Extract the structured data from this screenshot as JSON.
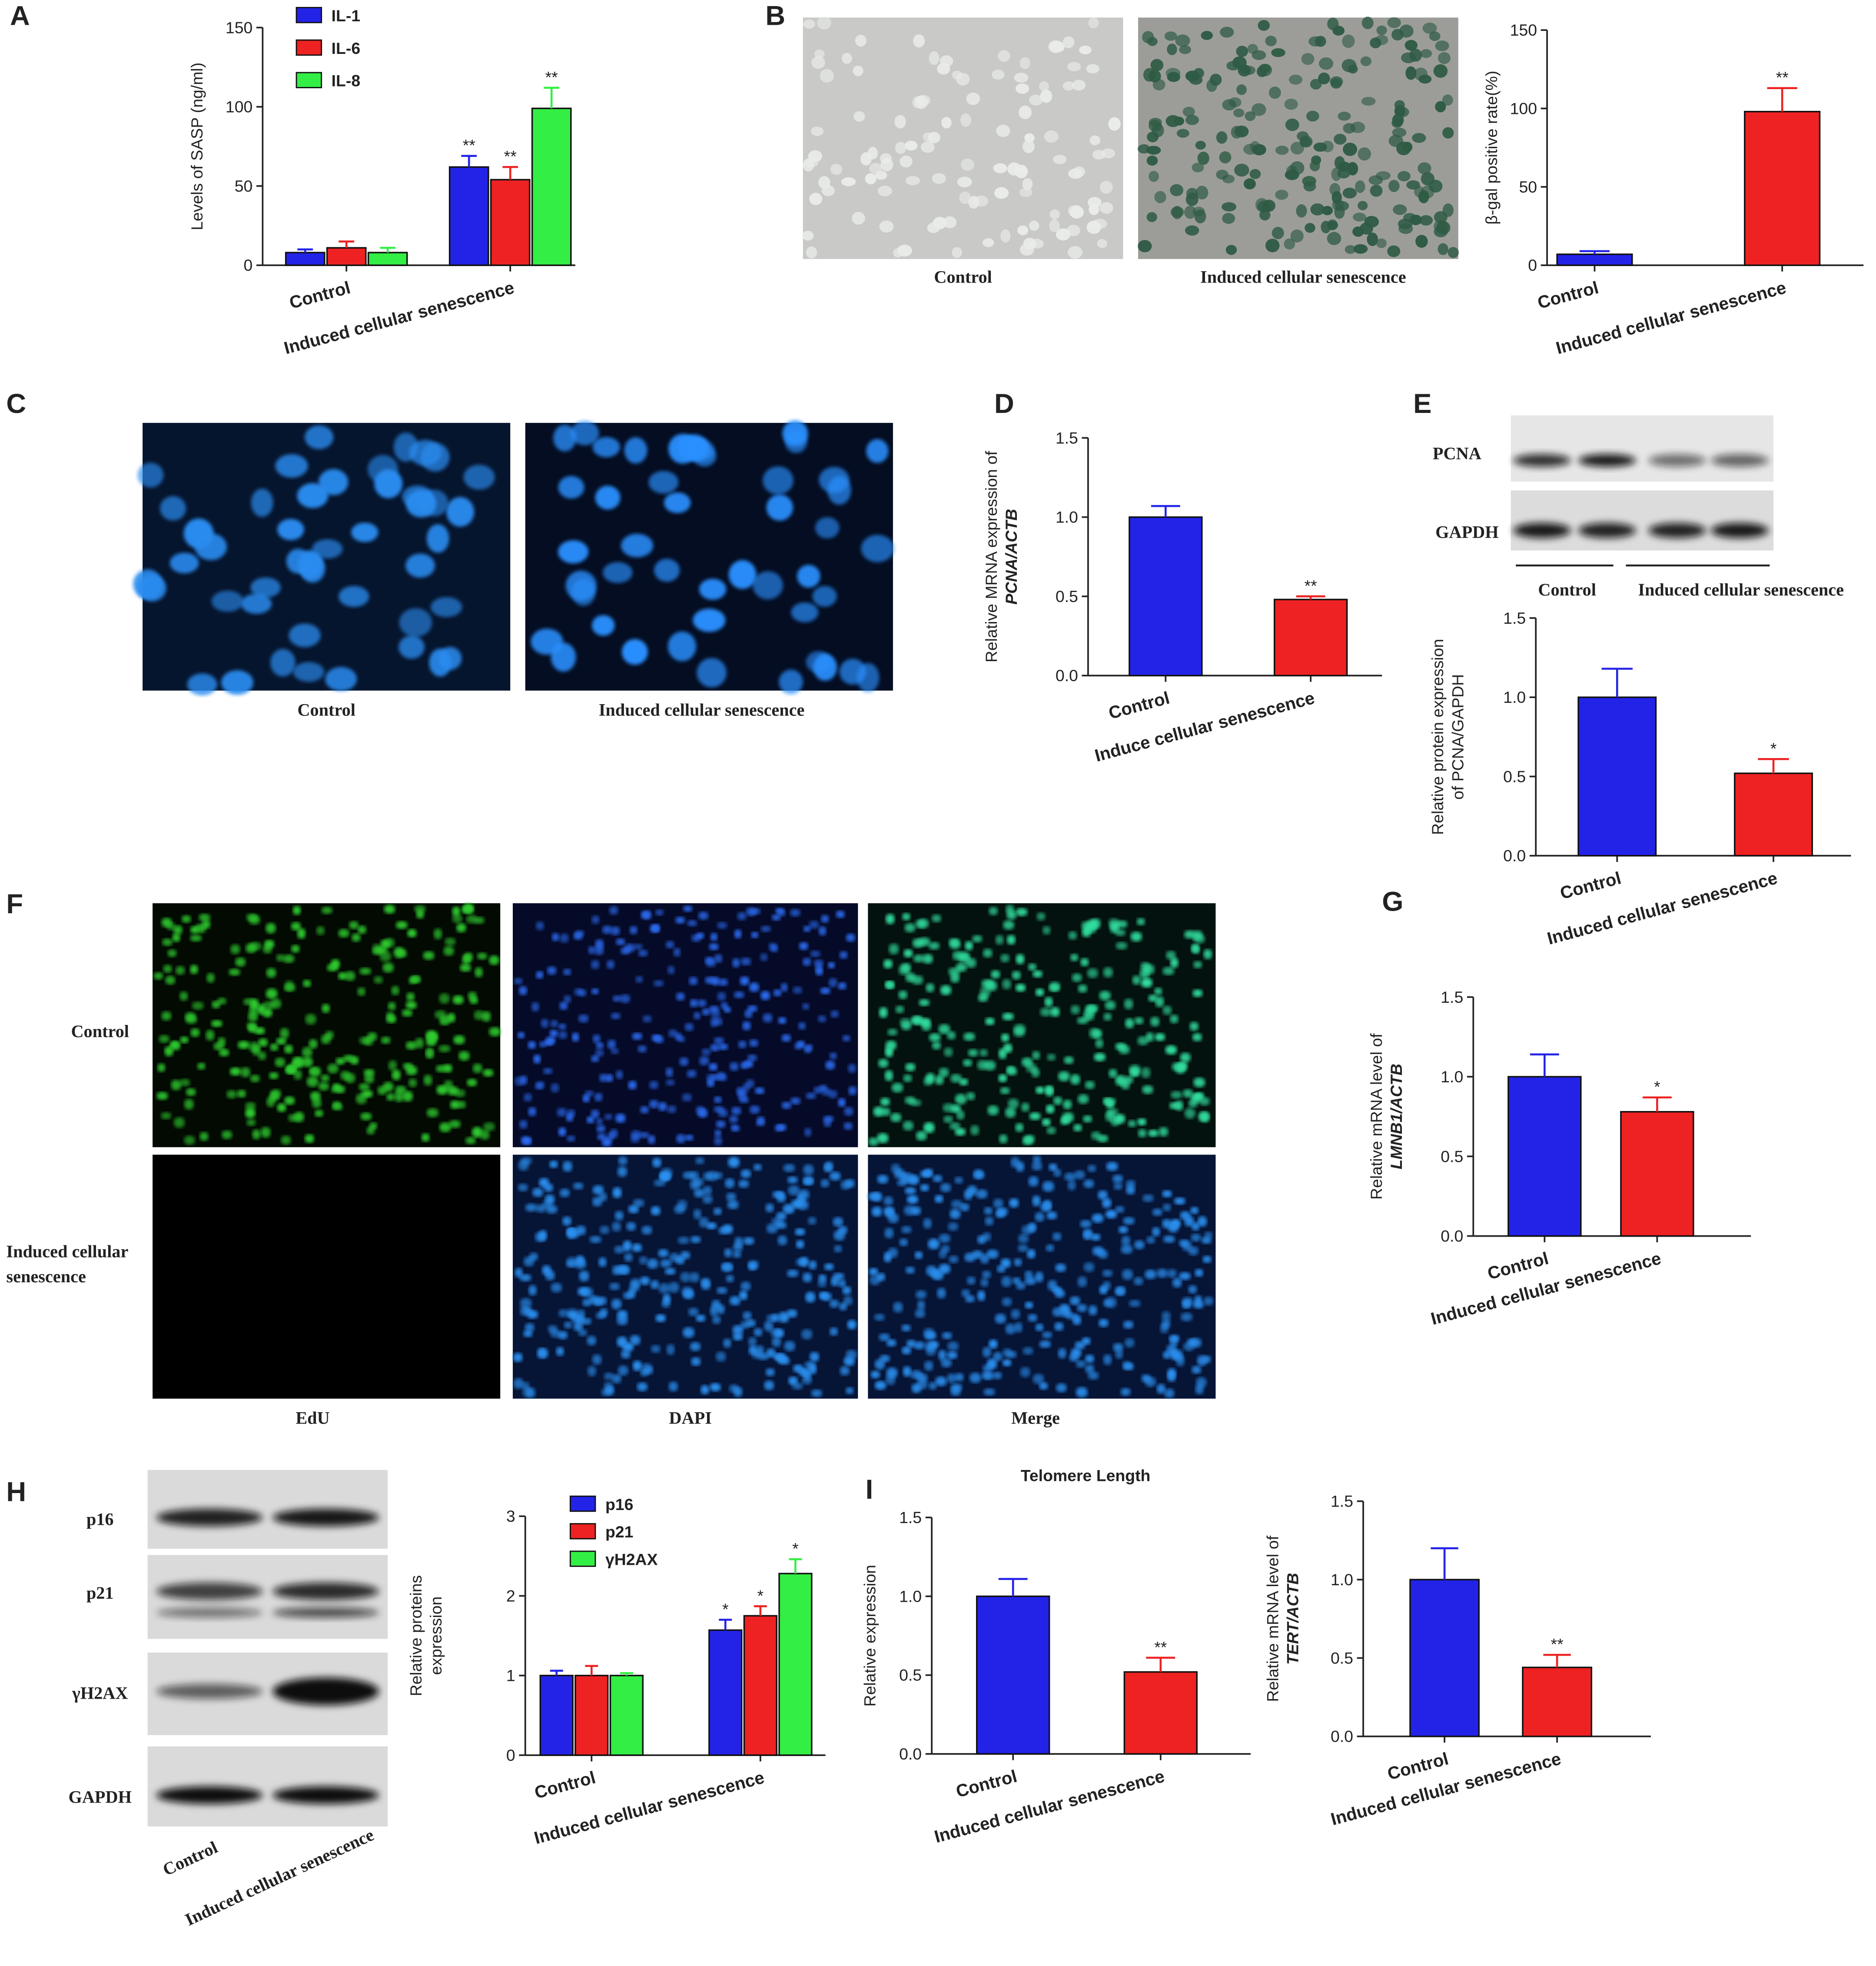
{
  "chart_data": [
    {
      "type": "bar",
      "panel": "A",
      "ylabel": "Levels of SASP (ng/ml)",
      "categories": [
        "Control",
        "Induced cellular senescence"
      ],
      "series": [
        {
          "name": "IL-1",
          "color": "#2323e8",
          "values": [
            8,
            62
          ],
          "errors": [
            2,
            7
          ],
          "significance": [
            null,
            "**"
          ]
        },
        {
          "name": "IL-6",
          "color": "#ee2222",
          "values": [
            11,
            54
          ],
          "errors": [
            4,
            8
          ],
          "significance": [
            null,
            "**"
          ]
        },
        {
          "name": "IL-8",
          "color": "#33ee44",
          "values": [
            8,
            99
          ],
          "errors": [
            3,
            13
          ],
          "significance": [
            null,
            "**"
          ]
        }
      ],
      "ylim": [
        0,
        150
      ],
      "yticks": [
        0,
        50,
        100,
        150
      ]
    },
    {
      "type": "bar",
      "ylabel": "β-gal positive rate(%)",
      "categories": [
        "Control",
        "Induced cellular senescence"
      ],
      "values": [
        7,
        98
      ],
      "errors": [
        2,
        15
      ],
      "colors": [
        "#2323e8",
        "#ee2222"
      ],
      "significance": [
        null,
        "**"
      ],
      "ylim": [
        0,
        150
      ],
      "yticks": [
        0,
        50,
        100,
        150
      ]
    },
    {
      "type": "bar",
      "panel": "D",
      "ylabel": [
        "Relative MRNA expression of",
        "PCNA/ACTB"
      ],
      "ylabel_italic": true,
      "categories": [
        "Control",
        "Induce cellular senescence"
      ],
      "values": [
        1.0,
        0.48
      ],
      "errors": [
        0.07,
        0.02
      ],
      "colors": [
        "#2323e8",
        "#ee2222"
      ],
      "significance": [
        null,
        "**"
      ],
      "ylim": [
        0,
        1.5
      ],
      "yticks": [
        {
          "value": 0,
          "label": "0.0"
        },
        0.5,
        {
          "value": 1,
          "label": "1.0"
        },
        {
          "value": 1.5,
          "label": "1.5"
        }
      ]
    },
    {
      "type": "bar",
      "ylabel": [
        "Relative protein expression",
        "of PCNA/GAPDH"
      ],
      "categories": [
        "Control",
        "Induced cellular senescence"
      ],
      "values": [
        1.0,
        0.52
      ],
      "errors": [
        0.18,
        0.09
      ],
      "colors": [
        "#2323e8",
        "#ee2222"
      ],
      "significance": [
        null,
        "*"
      ],
      "ylim": [
        0,
        1.5
      ],
      "yticks": [
        {
          "value": 0,
          "label": "0.0"
        },
        0.5,
        {
          "value": 1,
          "label": "1.0"
        },
        {
          "value": 1.5,
          "label": "1.5"
        }
      ]
    },
    {
      "type": "bar",
      "panel": "G",
      "ylabel": [
        "Relative mRNA level of",
        "LMNB1/ACTB"
      ],
      "ylabel_italic": true,
      "categories": [
        "Control",
        "Induced cellular senescence"
      ],
      "values": [
        1.0,
        0.78
      ],
      "errors": [
        0.14,
        0.09
      ],
      "colors": [
        "#2323e8",
        "#ee2222"
      ],
      "significance": [
        null,
        "*"
      ],
      "ylim": [
        0,
        1.5
      ],
      "yticks": [
        {
          "value": 0,
          "label": "0.0"
        },
        0.5,
        {
          "value": 1,
          "label": "1.0"
        },
        {
          "value": 1.5,
          "label": "1.5"
        }
      ]
    },
    {
      "type": "bar",
      "ylabel": [
        "Relative proteins",
        "expression"
      ],
      "categories": [
        "Control",
        "Induced cellular senescence"
      ],
      "series": [
        {
          "name": "p16",
          "color": "#2323e8",
          "values": [
            1.0,
            1.57
          ],
          "errors": [
            0.06,
            0.13
          ],
          "significance": [
            null,
            "*"
          ]
        },
        {
          "name": "p21",
          "color": "#ee2222",
          "values": [
            1.0,
            1.75
          ],
          "errors": [
            0.12,
            0.12
          ],
          "significance": [
            null,
            "*"
          ]
        },
        {
          "name": "γH2AX",
          "color": "#33ee44",
          "values": [
            1.0,
            2.28
          ],
          "errors": [
            0.03,
            0.18
          ],
          "significance": [
            null,
            "*"
          ]
        }
      ],
      "ylim": [
        0,
        3
      ],
      "yticks": [
        0,
        1,
        2,
        3
      ]
    },
    {
      "type": "bar",
      "panel": "I",
      "title": "Telomere Length",
      "ylabel": "Relative expression",
      "categories": [
        "Control",
        "Induced cellular senescence"
      ],
      "values": [
        1.0,
        0.52
      ],
      "errors": [
        0.11,
        0.09
      ],
      "colors": [
        "#2323e8",
        "#ee2222"
      ],
      "significance": [
        null,
        "**"
      ],
      "ylim": [
        0,
        1.5
      ],
      "yticks": [
        {
          "value": 0,
          "label": "0.0"
        },
        0.5,
        {
          "value": 1,
          "label": "1.0"
        },
        {
          "value": 1.5,
          "label": "1.5"
        }
      ]
    },
    {
      "type": "bar",
      "ylabel": [
        "Relative mRNA level of",
        "TERT/ACTB"
      ],
      "ylabel_italic": true,
      "categories": [
        "Control",
        "Induced cellular senescence"
      ],
      "values": [
        1.0,
        0.44
      ],
      "errors": [
        0.2,
        0.08
      ],
      "colors": [
        "#2323e8",
        "#ee2222"
      ],
      "significance": [
        null,
        "**"
      ],
      "ylim": [
        0,
        1.5
      ],
      "yticks": [
        {
          "value": 0,
          "label": "0.0"
        },
        0.5,
        {
          "value": 1,
          "label": "1.0"
        },
        {
          "value": 1.5,
          "label": "1.5"
        }
      ]
    }
  ],
  "images": [
    {
      "panel": "B",
      "captions": [
        "Control",
        "Induced cellular senescence"
      ]
    },
    {
      "panel": "C",
      "captions": [
        "Control",
        "Induced cellular senescence"
      ]
    },
    {
      "panel": "F",
      "row_labels": [
        "Control",
        "Induced cellular senescence"
      ],
      "column_labels": [
        "EdU",
        "DAPI",
        "Merge"
      ]
    }
  ],
  "blots": [
    {
      "panel": "E",
      "bands": [
        "PCNA",
        "GAPDH"
      ],
      "lanes": [
        "Control",
        "Induced cellular senescence"
      ]
    },
    {
      "panel": "H",
      "bands": [
        "p16",
        "p21",
        "γH2AX",
        "GAPDH"
      ],
      "lanes": [
        "Control",
        "Induced cellular senescence"
      ]
    }
  ]
}
